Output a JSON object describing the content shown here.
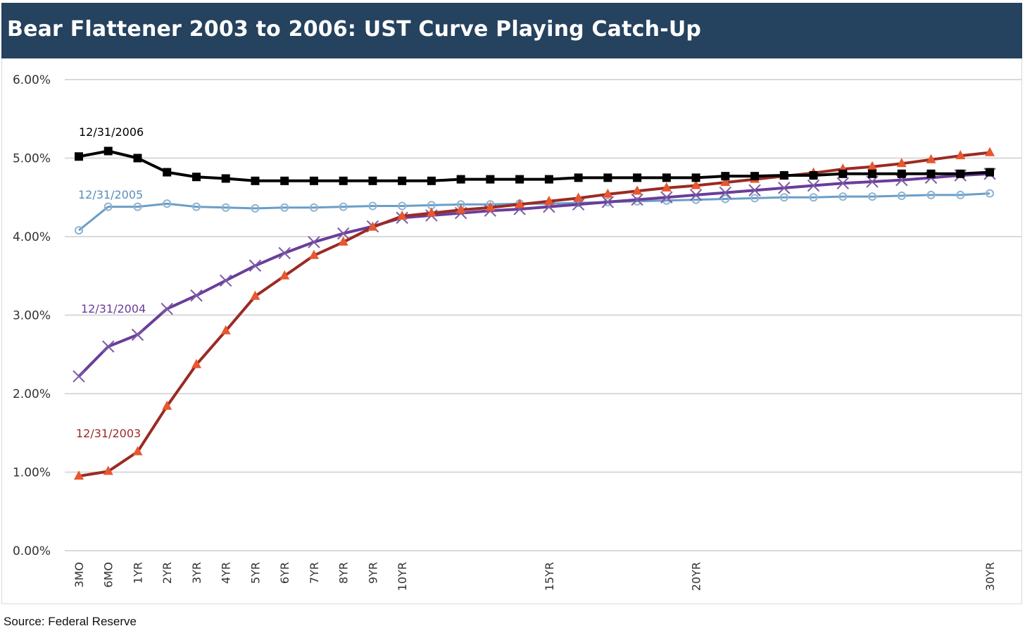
{
  "title": "Bear Flattener 2003 to 2006: UST Curve Playing Catch-Up",
  "source": "Source: Federal Reserve",
  "chart_data": {
    "type": "line",
    "title": "Bear Flattener 2003 to 2006: UST Curve Playing Catch-Up",
    "xlabel": "",
    "ylabel": "",
    "ylim": [
      0,
      6
    ],
    "y_ticks": [
      "0.00%",
      "1.00%",
      "2.00%",
      "3.00%",
      "4.00%",
      "5.00%",
      "6.00%"
    ],
    "x_ticks": [
      "3MO",
      "6MO",
      "1YR",
      "2YR",
      "3YR",
      "4YR",
      "5YR",
      "6YR",
      "7YR",
      "8YR",
      "9YR",
      "10YR",
      "15YR",
      "20YR",
      "30YR"
    ],
    "x_tick_positions": [
      0,
      1,
      2,
      3,
      4,
      5,
      6,
      7,
      8,
      9,
      10,
      11,
      16,
      21,
      31
    ],
    "x_range": [
      0,
      31
    ],
    "grid": true,
    "legend": "inline labels",
    "series": [
      {
        "name": "12/31/2006",
        "color": "#000000",
        "marker": "square",
        "x": [
          0,
          1,
          2,
          3,
          4,
          5,
          6,
          7,
          8,
          9,
          10,
          11,
          12,
          13,
          14,
          15,
          16,
          17,
          18,
          19,
          20,
          21,
          22,
          23,
          24,
          25,
          26,
          27,
          28,
          29,
          30,
          31
        ],
        "values": [
          5.02,
          5.09,
          5.0,
          4.82,
          4.76,
          4.74,
          4.71,
          4.71,
          4.71,
          4.71,
          4.71,
          4.71,
          4.71,
          4.73,
          4.73,
          4.73,
          4.73,
          4.75,
          4.75,
          4.75,
          4.75,
          4.75,
          4.77,
          4.77,
          4.78,
          4.78,
          4.8,
          4.8,
          4.8,
          4.8,
          4.8,
          4.82
        ]
      },
      {
        "name": "12/31/2005",
        "color": "#6a9ec7",
        "marker": "circle",
        "x": [
          0,
          1,
          2,
          3,
          4,
          5,
          6,
          7,
          8,
          9,
          10,
          11,
          12,
          13,
          14,
          15,
          16,
          17,
          18,
          19,
          20,
          21,
          22,
          23,
          24,
          25,
          26,
          27,
          28,
          29,
          30,
          31
        ],
        "values": [
          4.08,
          4.38,
          4.38,
          4.42,
          4.38,
          4.37,
          4.36,
          4.37,
          4.37,
          4.38,
          4.39,
          4.39,
          4.4,
          4.41,
          4.41,
          4.42,
          4.42,
          4.43,
          4.44,
          4.45,
          4.46,
          4.47,
          4.48,
          4.49,
          4.5,
          4.5,
          4.51,
          4.51,
          4.52,
          4.53,
          4.53,
          4.55
        ]
      },
      {
        "name": "12/31/2004",
        "color": "#6a3d9a",
        "marker": "x",
        "x": [
          0,
          1,
          2,
          3,
          4,
          5,
          6,
          7,
          8,
          9,
          10,
          11,
          12,
          13,
          14,
          15,
          16,
          17,
          18,
          19,
          20,
          21,
          22,
          23,
          24,
          25,
          26,
          27,
          28,
          29,
          30,
          31
        ],
        "values": [
          2.22,
          2.6,
          2.75,
          3.08,
          3.25,
          3.44,
          3.63,
          3.79,
          3.93,
          4.04,
          4.13,
          4.24,
          4.27,
          4.3,
          4.33,
          4.35,
          4.38,
          4.41,
          4.44,
          4.47,
          4.5,
          4.53,
          4.56,
          4.59,
          4.62,
          4.65,
          4.68,
          4.7,
          4.72,
          4.75,
          4.78,
          4.8
        ]
      },
      {
        "name": "12/31/2003",
        "color": "#9b2a24",
        "marker_color": "#e8572f",
        "marker": "triangle",
        "x": [
          0,
          1,
          2,
          3,
          4,
          5,
          6,
          7,
          8,
          9,
          10,
          11,
          12,
          13,
          14,
          15,
          16,
          17,
          18,
          19,
          20,
          21,
          22,
          23,
          24,
          25,
          26,
          27,
          28,
          29,
          30,
          31
        ],
        "values": [
          0.95,
          1.01,
          1.26,
          1.84,
          2.37,
          2.8,
          3.24,
          3.5,
          3.76,
          3.93,
          4.12,
          4.26,
          4.3,
          4.34,
          4.37,
          4.41,
          4.45,
          4.49,
          4.54,
          4.58,
          4.62,
          4.65,
          4.69,
          4.73,
          4.77,
          4.81,
          4.86,
          4.89,
          4.93,
          4.98,
          5.03,
          5.07
        ]
      }
    ],
    "annotations": [
      {
        "text": "12/31/2006",
        "series": "12/31/2006",
        "color": "#000000"
      },
      {
        "text": "12/31/2005",
        "series": "12/31/2005",
        "color": "#5b8db8"
      },
      {
        "text": "12/31/2004",
        "series": "12/31/2004",
        "color": "#6a3d9a"
      },
      {
        "text": "12/31/2003",
        "series": "12/31/2003",
        "color": "#9b2a24"
      }
    ]
  }
}
